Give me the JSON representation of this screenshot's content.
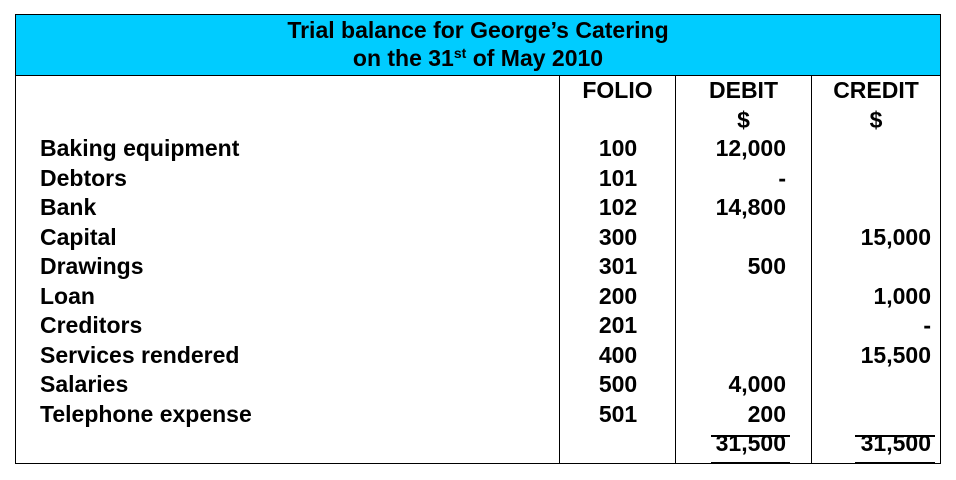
{
  "title": {
    "line1": "Trial balance for George’s Catering",
    "line2_prefix": "on the 31",
    "line2_sup": "st",
    "line2_suffix": " of May 2010"
  },
  "columns": {
    "folio": "FOLIO",
    "debit": "DEBIT",
    "credit": "CREDIT",
    "debit_currency": "$",
    "credit_currency": "$"
  },
  "rows": [
    {
      "account": "Baking equipment",
      "folio": "100",
      "debit": "12,000",
      "credit": ""
    },
    {
      "account": "Debtors",
      "folio": "101",
      "debit": "-",
      "credit": ""
    },
    {
      "account": "Bank",
      "folio": "102",
      "debit": "14,800",
      "credit": ""
    },
    {
      "account": "Capital",
      "folio": "300",
      "debit": "",
      "credit": "15,000"
    },
    {
      "account": "Drawings",
      "folio": "301",
      "debit": "500",
      "credit": ""
    },
    {
      "account": "Loan",
      "folio": "200",
      "debit": "",
      "credit": "1,000"
    },
    {
      "account": "Creditors",
      "folio": "201",
      "debit": "",
      "credit": "-"
    },
    {
      "account": "Services rendered",
      "folio": "400",
      "debit": "",
      "credit": "15,500"
    },
    {
      "account": "Salaries",
      "folio": "500",
      "debit": "4,000",
      "credit": ""
    },
    {
      "account": "Telephone expense",
      "folio": "501",
      "debit": "200",
      "credit": ""
    }
  ],
  "totals": {
    "debit": "31,500",
    "credit": "31,500"
  }
}
